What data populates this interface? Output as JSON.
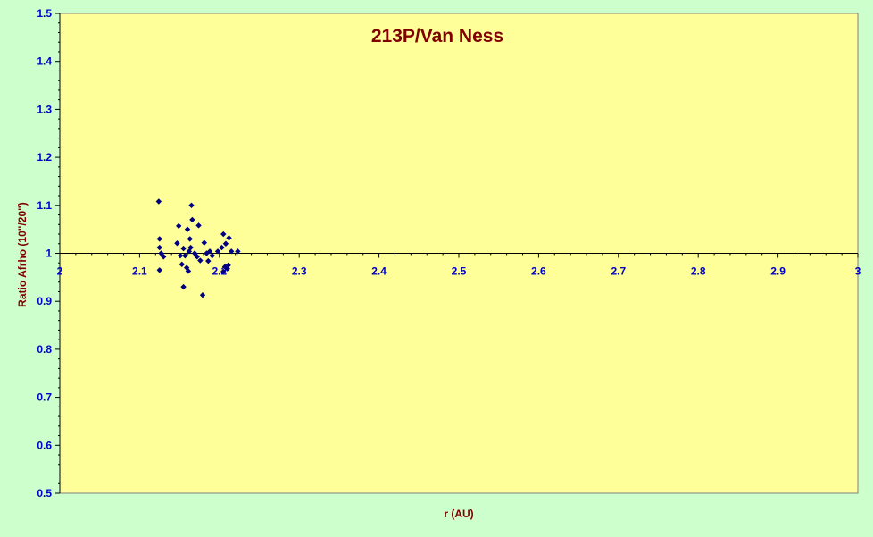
{
  "chart_data": {
    "type": "scatter",
    "title": "213P/Van Ness",
    "xlabel": "r (AU)",
    "ylabel": "Ratio Afrho (10\"/20\")",
    "xlim": [
      2,
      3
    ],
    "ylim": [
      0.5,
      1.5
    ],
    "x_ticks": [
      "2",
      "2.1",
      "2.2",
      "2.3",
      "2.4",
      "2.5",
      "2.6",
      "2.7",
      "2.8",
      "2.9",
      "3"
    ],
    "y_ticks": [
      "0.5",
      "0.6",
      "0.7",
      "0.8",
      "0.9",
      "1",
      "1.1",
      "1.2",
      "1.3",
      "1.4",
      "1.5"
    ],
    "reference_line_y": 1,
    "grid": false,
    "colors": {
      "background": "#ccffcc",
      "plot_area": "#ffff99",
      "marker": "#000080",
      "title": "#800000",
      "tick_labels": "#0000cc"
    },
    "series": [
      {
        "marker": "diamond",
        "points": [
          [
            2.124,
            1.108
          ],
          [
            2.125,
            1.03
          ],
          [
            2.125,
            1.012
          ],
          [
            2.127,
            1.0
          ],
          [
            2.13,
            0.993
          ],
          [
            2.125,
            0.965
          ],
          [
            2.147,
            1.021
          ],
          [
            2.149,
            1.057
          ],
          [
            2.151,
            0.995
          ],
          [
            2.153,
            0.977
          ],
          [
            2.155,
            1.01
          ],
          [
            2.155,
            0.93
          ],
          [
            2.157,
            0.995
          ],
          [
            2.159,
            0.97
          ],
          [
            2.16,
            1.05
          ],
          [
            2.161,
            0.963
          ],
          [
            2.162,
            1.004
          ],
          [
            2.163,
            1.03
          ],
          [
            2.164,
            1.012
          ],
          [
            2.165,
            1.1
          ],
          [
            2.166,
            1.07
          ],
          [
            2.169,
            1.0
          ],
          [
            2.172,
            0.993
          ],
          [
            2.174,
            1.058
          ],
          [
            2.176,
            0.985
          ],
          [
            2.179,
            0.913
          ],
          [
            2.181,
            1.022
          ],
          [
            2.184,
            1.0
          ],
          [
            2.186,
            0.984
          ],
          [
            2.188,
            1.004
          ],
          [
            2.191,
            0.995
          ],
          [
            2.198,
            1.004
          ],
          [
            2.203,
            1.012
          ],
          [
            2.205,
            1.04
          ],
          [
            2.205,
            0.962
          ],
          [
            2.207,
            0.972
          ],
          [
            2.208,
            1.02
          ],
          [
            2.21,
            0.968
          ],
          [
            2.211,
            0.975
          ],
          [
            2.212,
            1.032
          ],
          [
            2.215,
            1.004
          ],
          [
            2.223,
            1.004
          ]
        ]
      }
    ]
  }
}
